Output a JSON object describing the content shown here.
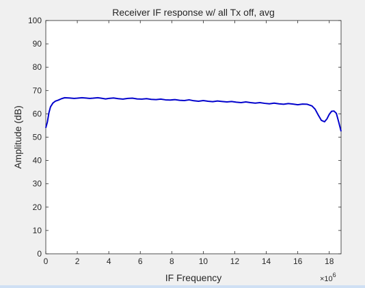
{
  "chart_data": {
    "type": "line",
    "title": "Receiver IF response w/ all Tx off, avg",
    "xlabel": "IF Frequency",
    "ylabel": "Amplitude (dB)",
    "x_exponent_label": "×10",
    "x_exponent_power": "6",
    "xlim": [
      0,
      18.75
    ],
    "ylim": [
      0,
      100
    ],
    "xticks": [
      0,
      2,
      4,
      6,
      8,
      10,
      12,
      14,
      16,
      18
    ],
    "yticks": [
      0,
      10,
      20,
      30,
      40,
      50,
      60,
      70,
      80,
      90,
      100
    ],
    "grid": false,
    "line_color": "#0000cc",
    "axes_background": "#ffffff",
    "series": [
      {
        "x": [
          0.0,
          0.1,
          0.2,
          0.3,
          0.45,
          0.6,
          0.8,
          1.0,
          1.2,
          1.5,
          1.8,
          2.0,
          2.3,
          2.5,
          2.8,
          3.0,
          3.3,
          3.5,
          3.8,
          4.0,
          4.3,
          4.6,
          4.9,
          5.2,
          5.5,
          5.8,
          6.1,
          6.4,
          6.7,
          7.0,
          7.3,
          7.6,
          7.9,
          8.2,
          8.5,
          8.8,
          9.1,
          9.4,
          9.7,
          10.0,
          10.3,
          10.6,
          10.9,
          11.2,
          11.5,
          11.8,
          12.1,
          12.4,
          12.7,
          13.0,
          13.3,
          13.6,
          13.9,
          14.2,
          14.5,
          14.8,
          15.1,
          15.4,
          15.7,
          16.0,
          16.3,
          16.6,
          16.9,
          17.1,
          17.3,
          17.5,
          17.7,
          17.85,
          18.0,
          18.15,
          18.3,
          18.45,
          18.6,
          18.75
        ],
        "y": [
          54.0,
          56.5,
          60.5,
          63.0,
          64.6,
          65.4,
          65.9,
          66.5,
          66.9,
          66.8,
          66.6,
          66.7,
          66.9,
          66.8,
          66.6,
          66.7,
          66.9,
          66.7,
          66.4,
          66.6,
          66.8,
          66.5,
          66.3,
          66.6,
          66.7,
          66.4,
          66.3,
          66.5,
          66.2,
          66.1,
          66.3,
          66.0,
          65.9,
          66.1,
          65.8,
          65.7,
          66.0,
          65.6,
          65.4,
          65.7,
          65.4,
          65.2,
          65.5,
          65.3,
          65.1,
          65.3,
          65.0,
          64.8,
          65.1,
          64.8,
          64.6,
          64.8,
          64.5,
          64.3,
          64.6,
          64.3,
          64.1,
          64.4,
          64.2,
          63.9,
          64.2,
          64.1,
          63.4,
          62.0,
          59.5,
          57.2,
          56.6,
          57.8,
          59.8,
          61.1,
          61.2,
          60.2,
          56.5,
          52.5
        ]
      }
    ]
  }
}
